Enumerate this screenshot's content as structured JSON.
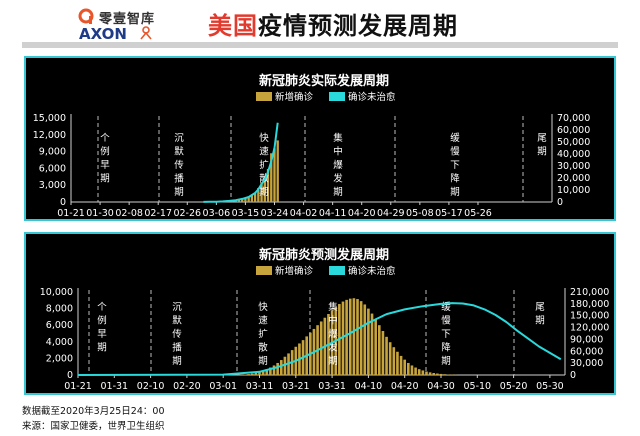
{
  "header": {
    "logo_cn": "零壹智库",
    "logo_en": "AXON",
    "title_highlight": "美国",
    "title_rest": "疫情预测发展周期"
  },
  "footer": {
    "date_note": "数据截至2020年3月25日24：00",
    "source": "来源：国家卫健委，世界卫生组织"
  },
  "colors": {
    "bar": "#c8a53c",
    "line": "#29d9dc",
    "panel_bg": "#000000",
    "panel_border": "#39c6d3",
    "title_accent": "#e23b2e"
  },
  "chart_data": [
    {
      "type": "bar",
      "title": "新冠肺炎实际发展周期",
      "legend": [
        "新增确诊",
        "确诊未治愈"
      ],
      "legend_position": "top",
      "x_ticks": [
        "01-21",
        "01-30",
        "02-08",
        "02-17",
        "02-26",
        "03-06",
        "03-15",
        "03-24",
        "04-02",
        "04-11",
        "04-20",
        "04-29",
        "05-08",
        "05-17",
        "05-26"
      ],
      "y_left": {
        "ticks": [
          0,
          3000,
          6000,
          9000,
          12000,
          15000
        ],
        "range": [
          0,
          15000
        ]
      },
      "y_right": {
        "ticks": [
          0,
          10000,
          20000,
          30000,
          40000,
          50000,
          60000,
          70000
        ],
        "range": [
          0,
          70000
        ]
      },
      "phases": [
        "个例早期",
        "沉默传播期",
        "快速扩散期",
        "集中爆发期",
        "缓慢下降期",
        "尾期"
      ],
      "series": [
        {
          "name": "新增确诊",
          "axis": "left",
          "x": [
            "03-02",
            "03-03",
            "03-04",
            "03-05",
            "03-06",
            "03-07",
            "03-08",
            "03-09",
            "03-10",
            "03-11",
            "03-12",
            "03-13",
            "03-14",
            "03-15",
            "03-16",
            "03-17",
            "03-18",
            "03-19",
            "03-20",
            "03-21",
            "03-22",
            "03-23",
            "03-24",
            "03-25"
          ],
          "values": [
            20,
            25,
            30,
            50,
            70,
            90,
            120,
            140,
            200,
            290,
            350,
            450,
            550,
            700,
            800,
            1200,
            1600,
            2500,
            3500,
            4600,
            5900,
            8700,
            9600,
            11000
          ]
        },
        {
          "name": "确诊未治愈",
          "axis": "right",
          "x": [
            "03-02",
            "03-04",
            "03-06",
            "03-08",
            "03-10",
            "03-12",
            "03-14",
            "03-16",
            "03-17",
            "03-18",
            "03-19",
            "03-20",
            "03-21",
            "03-22",
            "03-23",
            "03-24",
            "03-25"
          ],
          "values": [
            100,
            140,
            230,
            470,
            900,
            1500,
            2600,
            4200,
            5800,
            7500,
            10500,
            15000,
            19000,
            25000,
            34000,
            45000,
            66000
          ]
        }
      ]
    },
    {
      "type": "bar",
      "title": "新冠肺炎预测发展周期",
      "legend": [
        "新增确诊",
        "确诊未治愈"
      ],
      "legend_position": "top",
      "x_ticks": [
        "01-21",
        "01-31",
        "02-10",
        "02-20",
        "03-01",
        "03-11",
        "03-21",
        "03-31",
        "04-10",
        "04-20",
        "04-30",
        "05-10",
        "05-20",
        "05-30"
      ],
      "y_left": {
        "ticks": [
          0,
          2000,
          4000,
          6000,
          8000,
          10000
        ],
        "range": [
          0,
          10000
        ]
      },
      "y_right": {
        "ticks": [
          0,
          30000,
          60000,
          90000,
          120000,
          150000,
          180000,
          210000
        ],
        "range": [
          0,
          210000
        ]
      },
      "phases": [
        "个例早期",
        "沉默传播期",
        "快速扩散期",
        "集中爆发期",
        "缓慢下降期",
        "尾期"
      ],
      "series": [
        {
          "name": "新增确诊",
          "axis": "left",
          "x_start": "03-06",
          "x_end": "05-04",
          "values": [
            30,
            60,
            110,
            170,
            260,
            380,
            520,
            700,
            900,
            1150,
            1450,
            1800,
            2200,
            2600,
            3000,
            3400,
            3800,
            4200,
            4650,
            5100,
            5550,
            6000,
            6450,
            6900,
            7350,
            7800,
            8200,
            8550,
            8850,
            9050,
            9200,
            9250,
            9150,
            8900,
            8500,
            8000,
            7400,
            6700,
            6000,
            5300,
            4600,
            3950,
            3350,
            2800,
            2300,
            1850,
            1450,
            1150,
            900,
            700,
            550,
            420,
            320,
            240,
            180,
            130,
            95,
            65,
            40,
            20
          ]
        },
        {
          "name": "确诊未治愈",
          "axis": "right",
          "x": [
            "01-21",
            "03-01",
            "03-11",
            "03-16",
            "03-21",
            "03-26",
            "03-31",
            "04-05",
            "04-10",
            "04-15",
            "04-20",
            "04-25",
            "04-30",
            "05-03",
            "05-06",
            "05-09",
            "05-12",
            "05-15",
            "05-18",
            "05-21",
            "05-24",
            "05-27",
            "05-30",
            "06-02"
          ],
          "values": [
            0,
            1000,
            8000,
            20000,
            36000,
            58000,
            82000,
            106000,
            132000,
            154000,
            166000,
            174000,
            180000,
            182000,
            181000,
            176000,
            166000,
            152000,
            134000,
            112000,
            92000,
            72000,
            56000,
            40000
          ]
        }
      ]
    }
  ]
}
